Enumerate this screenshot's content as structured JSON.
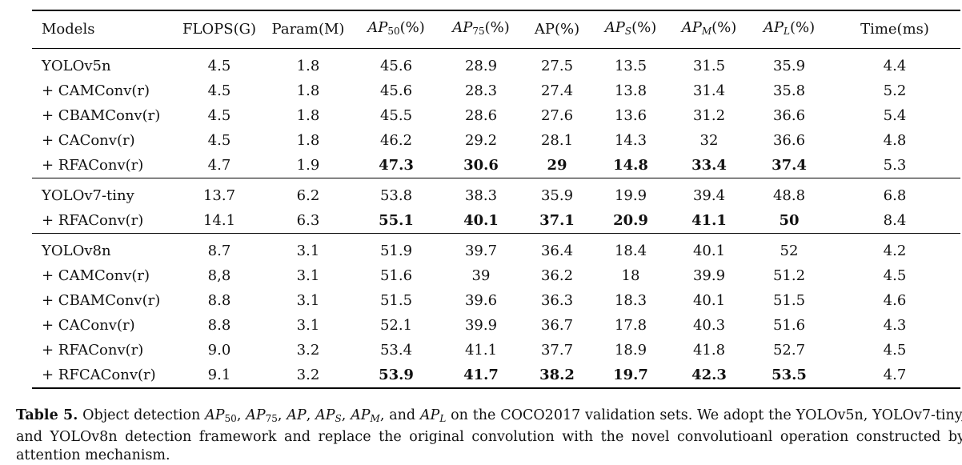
{
  "columns": [
    {
      "key": "model",
      "text": "Models"
    },
    {
      "key": "flops",
      "text": "FLOPS(G)"
    },
    {
      "key": "param",
      "text": "Param(M)"
    },
    {
      "key": "ap50",
      "base": "AP",
      "sub": "50",
      "suffix": "(%)"
    },
    {
      "key": "ap75",
      "base": "AP",
      "sub": "75",
      "suffix": "(%)"
    },
    {
      "key": "ap",
      "text": "AP(%)"
    },
    {
      "key": "aps",
      "base": "AP",
      "sub": "S",
      "suffix": "(%)"
    },
    {
      "key": "apm",
      "base": "AP",
      "sub": "M",
      "suffix": "(%)"
    },
    {
      "key": "apl",
      "base": "AP",
      "sub": "L",
      "suffix": "(%)"
    },
    {
      "key": "time",
      "text": "Time(ms)"
    }
  ],
  "groups": [
    {
      "rows": [
        {
          "model": "YOLOv5n",
          "values": [
            "4.5",
            "1.8",
            "45.6",
            "28.9",
            "27.5",
            "13.5",
            "31.5",
            "35.9",
            "4.4"
          ],
          "bold": []
        },
        {
          "model": "+ CAMConv(r)",
          "values": [
            "4.5",
            "1.8",
            "45.6",
            "28.3",
            "27.4",
            "13.8",
            "31.4",
            "35.8",
            "5.2"
          ],
          "bold": []
        },
        {
          "model": "+ CBAMConv(r)",
          "values": [
            "4.5",
            "1.8",
            "45.5",
            "28.6",
            "27.6",
            "13.6",
            "31.2",
            "36.6",
            "5.4"
          ],
          "bold": []
        },
        {
          "model": "+ CAConv(r)",
          "values": [
            "4.5",
            "1.8",
            "46.2",
            "29.2",
            "28.1",
            "14.3",
            "32",
            "36.6",
            "4.8"
          ],
          "bold": []
        },
        {
          "model": "+ RFAConv(r)",
          "values": [
            "4.7",
            "1.9",
            "47.3",
            "30.6",
            "29",
            "14.8",
            "33.4",
            "37.4",
            "5.3"
          ],
          "bold": [
            2,
            3,
            4,
            5,
            6,
            7
          ]
        }
      ]
    },
    {
      "rows": [
        {
          "model": "YOLOv7-tiny",
          "values": [
            "13.7",
            "6.2",
            "53.8",
            "38.3",
            "35.9",
            "19.9",
            "39.4",
            "48.8",
            "6.8"
          ],
          "bold": []
        },
        {
          "model": "+ RFAConv(r)",
          "values": [
            "14.1",
            "6.3",
            "55.1",
            "40.1",
            "37.1",
            "20.9",
            "41.1",
            "50",
            "8.4"
          ],
          "bold": [
            2,
            3,
            4,
            5,
            6,
            7
          ]
        }
      ]
    },
    {
      "rows": [
        {
          "model": "YOLOv8n",
          "values": [
            "8.7",
            "3.1",
            "51.9",
            "39.7",
            "36.4",
            "18.4",
            "40.1",
            "52",
            "4.2"
          ],
          "bold": []
        },
        {
          "model": "+ CAMConv(r)",
          "values": [
            "8,8",
            "3.1",
            "51.6",
            "39",
            "36.2",
            "18",
            "39.9",
            "51.2",
            "4.5"
          ],
          "bold": []
        },
        {
          "model": "+ CBAMConv(r)",
          "values": [
            "8.8",
            "3.1",
            "51.5",
            "39.6",
            "36.3",
            "18.3",
            "40.1",
            "51.5",
            "4.6"
          ],
          "bold": []
        },
        {
          "model": "+ CAConv(r)",
          "values": [
            "8.8",
            "3.1",
            "52.1",
            "39.9",
            "36.7",
            "17.8",
            "40.3",
            "51.6",
            "4.3"
          ],
          "bold": []
        },
        {
          "model": "+ RFAConv(r)",
          "values": [
            "9.0",
            "3.2",
            "53.4",
            "41.1",
            "37.7",
            "18.9",
            "41.8",
            "52.7",
            "4.5"
          ],
          "bold": []
        },
        {
          "model": "+ RFCAConv(r)",
          "values": [
            "9.1",
            "3.2",
            "53.9",
            "41.7",
            "38.2",
            "19.7",
            "42.3",
            "53.5",
            "4.7"
          ],
          "bold": [
            2,
            3,
            4,
            5,
            6,
            7
          ]
        }
      ]
    }
  ],
  "caption": {
    "label": "Table 5.",
    "segments": [
      {
        "t": " Object detection "
      },
      {
        "base": "AP",
        "sub": "50"
      },
      {
        "t": ", "
      },
      {
        "base": "AP",
        "sub": "75"
      },
      {
        "t": ", "
      },
      {
        "base": "AP"
      },
      {
        "t": ", "
      },
      {
        "base": "AP",
        "sub": "S"
      },
      {
        "t": ", "
      },
      {
        "base": "AP",
        "sub": "M"
      },
      {
        "t": ", and "
      },
      {
        "base": "AP",
        "sub": "L"
      },
      {
        "t": " on the COCO2017 validation sets. We adopt the YOLOv5n, YOLOv7-tiny, and YOLOv8n detection framework and replace the original convolution with the novel convolutioanl operation constructed by attention mechanism."
      }
    ]
  }
}
